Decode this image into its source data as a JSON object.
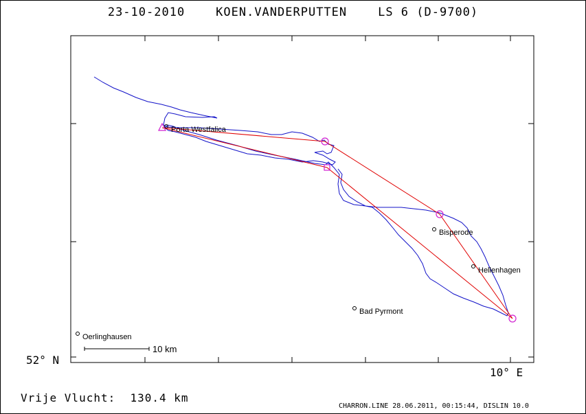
{
  "title": {
    "date": "23-10-2010",
    "pilot": "KOEN.VANDERPUTTEN",
    "glider": "LS 6 (D-9700)"
  },
  "axes": {
    "lat_label": "52° N",
    "lon_label": "10° E"
  },
  "towns": [
    {
      "id": "porta",
      "name": "Porta Westfalica"
    },
    {
      "id": "bisperode",
      "name": "Bisperode"
    },
    {
      "id": "hellenhagen",
      "name": "Hellenhagen"
    },
    {
      "id": "bad-pyrmont",
      "name": "Bad Pyrmont"
    },
    {
      "id": "oerlinghausen",
      "name": "Oerlinghausen"
    }
  ],
  "scale_bar": {
    "label": "10 km"
  },
  "footer": {
    "distance_label": "Vrije Vlucht:",
    "distance_value": "130.4 km",
    "software": "CHARRON.LINE 28.06.2011, 00:15:44, DISLIN 10.0"
  },
  "colors": {
    "track": "#1010c8",
    "task": "#e00000",
    "turnpoint": "#d020d0",
    "frame": "#000000"
  }
}
